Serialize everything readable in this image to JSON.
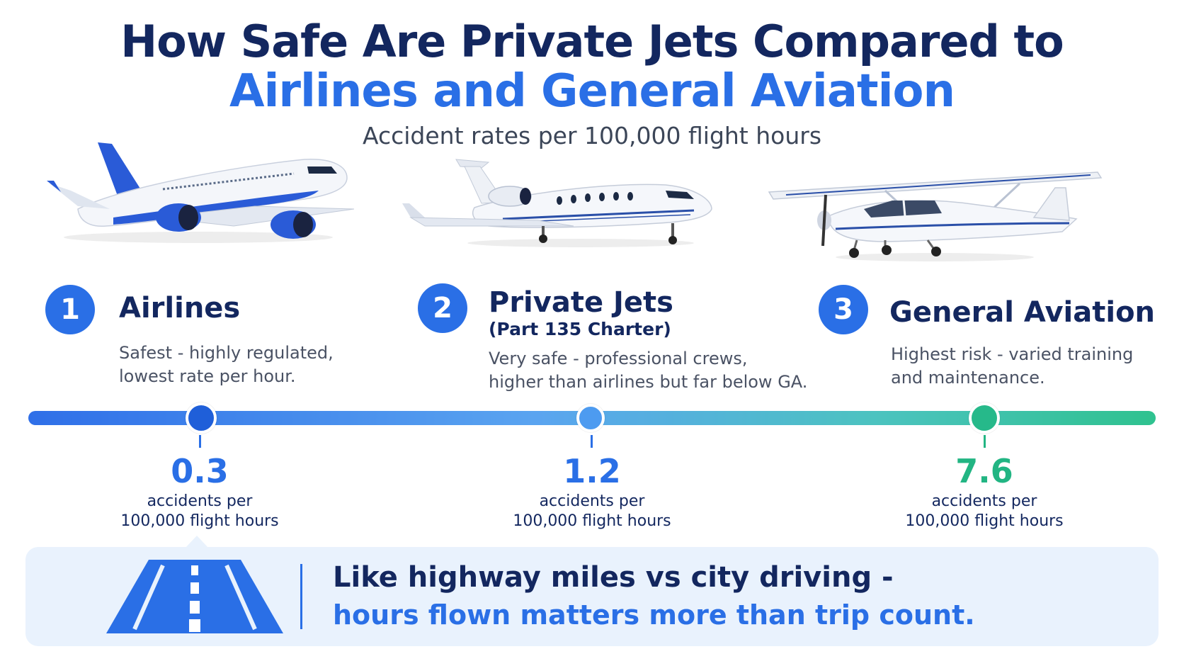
{
  "header": {
    "title_line1": "How Safe Are Private Jets Compared to",
    "title_line2": "Airlines and General Aviation",
    "subtitle": "Accident rates per 100,000 flight hours"
  },
  "categories": [
    {
      "number": "1",
      "name": "Airlines",
      "sub": "",
      "desc_line1": "Safest - highly regulated,",
      "desc_line2": "lowest rate per hour.",
      "rate": "0.3",
      "unit_line1": "accidents per",
      "unit_line2": "100,000 flight hours",
      "color": "#2a6fe6",
      "icon": "airliner-icon"
    },
    {
      "number": "2",
      "name": "Private Jets",
      "sub": "(Part 135 Charter)",
      "desc_line1": "Very safe - professional crews,",
      "desc_line2": "higher than airlines but far below GA.",
      "rate": "1.2",
      "unit_line1": "accidents per",
      "unit_line2": "100,000 flight hours",
      "color": "#2a6fe6",
      "icon": "private-jet-icon"
    },
    {
      "number": "3",
      "name": "General Aviation",
      "sub": "",
      "desc_line1": "Highest risk - varied training",
      "desc_line2": "and maintenance.",
      "rate": "7.6",
      "unit_line1": "accidents per",
      "unit_line2": "100,000 flight hours",
      "color": "#22b583",
      "icon": "small-plane-icon"
    }
  ],
  "callout": {
    "line1": "Like highway miles vs city driving -",
    "line2": "hours flown matters more than trip count.",
    "icon": "road-icon"
  },
  "colors": {
    "navy": "#13275f",
    "blue": "#2a6fe6",
    "green": "#22b583",
    "callout_bg": "#e9f2fd"
  }
}
